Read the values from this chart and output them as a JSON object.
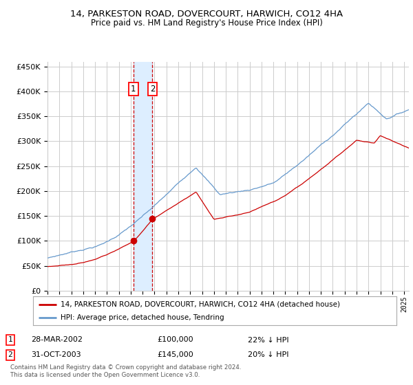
{
  "title": "14, PARKESTON ROAD, DOVERCOURT, HARWICH, CO12 4HA",
  "subtitle": "Price paid vs. HM Land Registry's House Price Index (HPI)",
  "x_start_year": 1995,
  "x_end_year": 2025,
  "ylim": [
    0,
    460000
  ],
  "yticks": [
    0,
    50000,
    100000,
    150000,
    200000,
    250000,
    300000,
    350000,
    400000,
    450000
  ],
  "sale1_date": 2002.23,
  "sale1_price": 100000,
  "sale1_label": "1",
  "sale1_text": "28-MAR-2002",
  "sale1_amount": "£100,000",
  "sale1_hpi": "22% ↓ HPI",
  "sale2_date": 2003.83,
  "sale2_price": 145000,
  "sale2_label": "2",
  "sale2_text": "31-OCT-2003",
  "sale2_amount": "£145,000",
  "sale2_hpi": "20% ↓ HPI",
  "legend_house": "14, PARKESTON ROAD, DOVERCOURT, HARWICH, CO12 4HA (detached house)",
  "legend_hpi": "HPI: Average price, detached house, Tendring",
  "footnote1": "Contains HM Land Registry data © Crown copyright and database right 2024.",
  "footnote2": "This data is licensed under the Open Government Licence v3.0.",
  "house_line_color": "#cc0000",
  "hpi_line_color": "#6699cc",
  "background_color": "#ffffff",
  "grid_color": "#cccccc",
  "sale_marker_color": "#cc0000",
  "vline_color": "#cc0000",
  "vspan_color": "#ddeeff"
}
